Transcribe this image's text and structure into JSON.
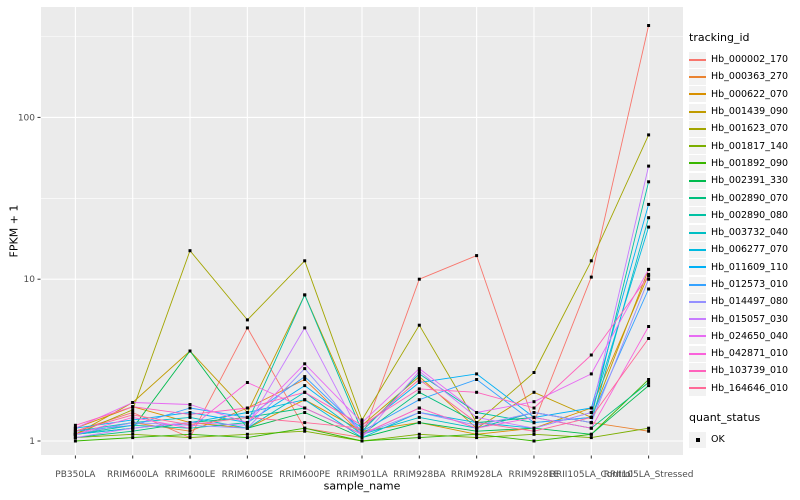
{
  "chart_data": {
    "type": "line",
    "title": "",
    "xlabel": "sample_name",
    "ylabel": "FPKM + 1",
    "y_scale": "log10",
    "ylim": [
      1,
      400
    ],
    "y_ticks": [
      1,
      10,
      100
    ],
    "y_minor_ticks": [
      3.1623,
      31.623,
      316.23
    ],
    "grid": true,
    "legend_position": "right",
    "categories": [
      "PB350LA",
      "RRIM600LA",
      "RRIM600LE",
      "RRIM600SE",
      "RRIM600PE",
      "RRIM901LA",
      "RRIM928BA",
      "RRIM928LA",
      "RRIM928LE",
      "RRII105LA_Control",
      "RRII105LA_Stressed"
    ],
    "series": [
      {
        "name": "Hb_000002_170",
        "color": "#F8766D",
        "values": [
          1.15,
          1.5,
          1.05,
          5.0,
          1.2,
          1.05,
          10.0,
          14.0,
          1.3,
          10.3,
          370
        ]
      },
      {
        "name": "Hb_000363_270",
        "color": "#EA8331",
        "values": [
          1.1,
          1.3,
          1.15,
          1.6,
          2.4,
          1.1,
          1.6,
          1.2,
          1.5,
          1.3,
          1.15
        ]
      },
      {
        "name": "Hb_000622_070",
        "color": "#D89000",
        "values": [
          1.2,
          1.63,
          1.3,
          1.2,
          1.8,
          1.15,
          1.3,
          1.1,
          1.2,
          1.6,
          10.7
        ]
      },
      {
        "name": "Hb_001439_090",
        "color": "#C09B00",
        "values": [
          1.1,
          1.73,
          3.6,
          1.5,
          8.0,
          1.25,
          2.5,
          1.2,
          2.0,
          1.4,
          11.5
        ]
      },
      {
        "name": "Hb_001623_070",
        "color": "#A3A500",
        "values": [
          1.1,
          1.56,
          15.0,
          5.6,
          13.0,
          1.35,
          5.2,
          1.3,
          2.65,
          13.0,
          78
        ]
      },
      {
        "name": "Hb_001817_140",
        "color": "#7CAE00",
        "values": [
          1.05,
          1.1,
          1.05,
          1.1,
          1.15,
          1.0,
          1.1,
          1.05,
          1.1,
          1.05,
          1.2
        ]
      },
      {
        "name": "Hb_001892_090",
        "color": "#39B600",
        "values": [
          1.0,
          1.05,
          1.1,
          1.05,
          1.2,
          1.0,
          1.05,
          1.1,
          1.0,
          1.1,
          2.4
        ]
      },
      {
        "name": "Hb_002391_330",
        "color": "#00BB4E",
        "values": [
          1.1,
          1.2,
          3.6,
          1.2,
          1.5,
          1.05,
          1.3,
          1.15,
          1.2,
          1.1,
          2.2
        ]
      },
      {
        "name": "Hb_002890_070",
        "color": "#00BF7D",
        "values": [
          1.05,
          1.15,
          1.3,
          1.4,
          1.6,
          1.1,
          2.0,
          1.3,
          1.4,
          1.2,
          2.3
        ]
      },
      {
        "name": "Hb_002890_080",
        "color": "#00C1A3",
        "values": [
          1.1,
          1.25,
          1.2,
          1.3,
          8.0,
          1.15,
          2.6,
          1.5,
          1.3,
          1.4,
          40
        ]
      },
      {
        "name": "Hb_003732_040",
        "color": "#00BFC4",
        "values": [
          1.15,
          1.3,
          1.4,
          1.2,
          2.0,
          1.1,
          1.4,
          1.2,
          1.5,
          1.3,
          24
        ]
      },
      {
        "name": "Hb_006277_070",
        "color": "#00BAE0",
        "values": [
          1.1,
          1.2,
          1.3,
          1.5,
          1.8,
          1.05,
          1.5,
          1.3,
          1.2,
          1.5,
          21
        ]
      },
      {
        "name": "Hb_011609_110",
        "color": "#00B0F6",
        "values": [
          1.2,
          1.35,
          1.5,
          1.3,
          2.2,
          1.2,
          2.3,
          2.6,
          1.4,
          1.6,
          29
        ]
      },
      {
        "name": "Hb_012573_010",
        "color": "#35A2FF",
        "values": [
          1.15,
          1.25,
          1.6,
          1.4,
          2.5,
          1.15,
          1.8,
          2.4,
          1.3,
          1.4,
          8.7
        ]
      },
      {
        "name": "Hb_014497_080",
        "color": "#9590FF",
        "values": [
          1.1,
          1.3,
          1.25,
          1.2,
          2.8,
          1.1,
          1.5,
          1.25,
          1.5,
          1.3,
          10.0
        ]
      },
      {
        "name": "Hb_015057_030",
        "color": "#C77CFF",
        "values": [
          1.05,
          1.2,
          1.3,
          1.25,
          5.0,
          1.05,
          2.7,
          1.4,
          1.2,
          1.5,
          50
        ]
      },
      {
        "name": "Hb_024650_040",
        "color": "#E76BF3",
        "values": [
          1.2,
          1.73,
          1.68,
          1.3,
          3.0,
          1.3,
          2.8,
          1.5,
          1.75,
          2.6,
          11.5
        ]
      },
      {
        "name": "Hb_042871_010",
        "color": "#FA62DB",
        "values": [
          1.1,
          1.4,
          1.2,
          2.3,
          1.6,
          1.1,
          1.6,
          1.2,
          1.4,
          1.2,
          5.1
        ]
      },
      {
        "name": "Hb_103739_010",
        "color": "#FF62BC",
        "values": [
          1.25,
          1.63,
          1.46,
          1.6,
          2.0,
          1.25,
          2.1,
          2.0,
          1.6,
          3.4,
          10.5
        ]
      },
      {
        "name": "Hb_164646_010",
        "color": "#FF6A98",
        "values": [
          1.15,
          1.45,
          1.26,
          1.4,
          1.3,
          1.2,
          2.4,
          1.3,
          1.15,
          1.4,
          4.3
        ]
      }
    ],
    "legend": {
      "title": "tracking_id"
    },
    "legend2": {
      "title": "quant_status",
      "entries": [
        {
          "label": "OK",
          "marker": "black-square"
        }
      ]
    },
    "style": {
      "panel_bg": "#EBEBEB",
      "grid_color": "#FFFFFF",
      "point_color": "#000000",
      "axis_text_color": "#4D4D4D",
      "tick_mark_color": "#333333",
      "legend_key_bg": "#F2F2F2"
    }
  }
}
